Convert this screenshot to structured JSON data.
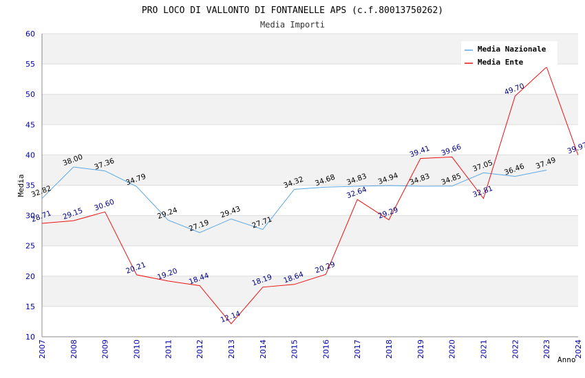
{
  "chart_data": {
    "type": "line",
    "title": "PRO LOCO DI VALLONTO DI FONTANELLE APS (c.f.80013750262)",
    "subtitle": "Media Importi",
    "ylabel": "Media",
    "xlabel": "Anno",
    "ylim": [
      10,
      60
    ],
    "yticks": [
      "10",
      "15",
      "20",
      "25",
      "30",
      "35",
      "40",
      "45",
      "50",
      "55",
      "60"
    ],
    "x": [
      "2007",
      "2008",
      "2009",
      "2010",
      "2011",
      "2012",
      "2013",
      "2014",
      "2015",
      "2016",
      "2017",
      "2018",
      "2019",
      "2020",
      "2021",
      "2022",
      "2023",
      "2024"
    ],
    "legend_position": "top-right",
    "series": [
      {
        "name": "Media Nazionale",
        "color": "#5aa7e6",
        "values": [
          32.82,
          38.0,
          37.36,
          34.79,
          29.24,
          27.19,
          29.43,
          27.71,
          34.32,
          34.68,
          34.83,
          34.94,
          34.83,
          34.85,
          37.05,
          36.46,
          37.49,
          null
        ],
        "labels": [
          "32.82",
          "38.00",
          "37.36",
          "34.79",
          "29.24",
          "27.19",
          "29.43",
          "27.71",
          "34.32",
          "34.68",
          "34.83",
          "34.94",
          "34.83",
          "34.85",
          "37.05",
          "36.46",
          "37.49",
          null
        ]
      },
      {
        "name": "Media Ente",
        "color": "#ee1111",
        "values": [
          28.71,
          29.15,
          30.6,
          20.21,
          19.2,
          18.44,
          12.14,
          18.19,
          18.64,
          20.29,
          32.64,
          29.29,
          39.41,
          39.66,
          32.81,
          49.7,
          54.5,
          39.97
        ],
        "labels": [
          "28.71",
          "29.15",
          "30.60",
          "20.21",
          "19.20",
          "18.44",
          "12.14",
          "18.19",
          "18.64",
          "20.29",
          "32.64",
          "29.29",
          "39.41",
          "39.66",
          "32.81",
          "49.70",
          null,
          "39.97"
        ]
      }
    ]
  }
}
